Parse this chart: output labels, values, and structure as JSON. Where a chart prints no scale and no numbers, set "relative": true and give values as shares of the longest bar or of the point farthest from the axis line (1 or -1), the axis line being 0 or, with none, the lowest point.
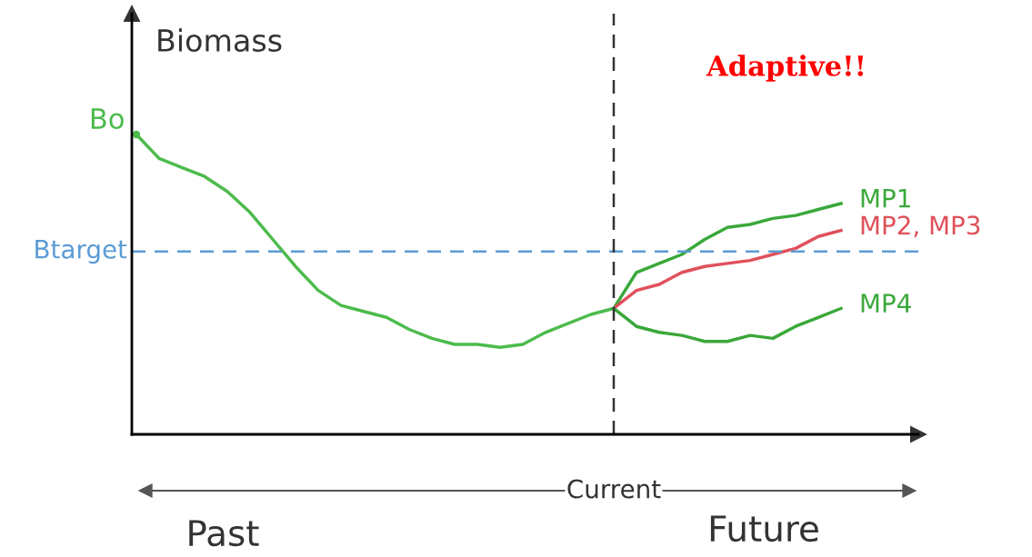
{
  "chart_data": {
    "type": "line",
    "relative": true,
    "ylabel": "Biomass",
    "legend": false,
    "grid": false,
    "marker": "none",
    "line_style": "solid",
    "categories": [
      null,
      null,
      null,
      null,
      null,
      null,
      null,
      null,
      null,
      null,
      null,
      null,
      null,
      null,
      null,
      null,
      null,
      null,
      null,
      null,
      null,
      null,
      null,
      null,
      null,
      null,
      null,
      null,
      null,
      null,
      null,
      null,
      null,
      null,
      null
    ],
    "series": [
      {
        "color": "#4cbb4c",
        "values": [
          1.0,
          0.92,
          0.89,
          0.86,
          0.81,
          0.74,
          0.65,
          0.56,
          0.48,
          0.43,
          0.41,
          0.39,
          0.35,
          0.32,
          0.3,
          0.3,
          0.29,
          0.3,
          0.34,
          0.37,
          0.4,
          0.42,
          null,
          null,
          null,
          null,
          null,
          null,
          null,
          null,
          null,
          null,
          null,
          null,
          null
        ]
      },
      {
        "name": "MP1",
        "color": "#3aa83a",
        "values": [
          null,
          null,
          null,
          null,
          null,
          null,
          null,
          null,
          null,
          null,
          null,
          null,
          null,
          null,
          null,
          null,
          null,
          null,
          null,
          null,
          null,
          0.42,
          0.54,
          0.57,
          0.6,
          0.65,
          0.69,
          0.7,
          0.72,
          0.73,
          0.75,
          0.77,
          null,
          null,
          null
        ]
      },
      {
        "name": "MP2, MP3",
        "color": "#e0505a",
        "values": [
          null,
          null,
          null,
          null,
          null,
          null,
          null,
          null,
          null,
          null,
          null,
          null,
          null,
          null,
          null,
          null,
          null,
          null,
          null,
          null,
          null,
          0.42,
          0.48,
          0.5,
          0.54,
          0.56,
          0.57,
          0.58,
          0.6,
          0.62,
          0.66,
          0.68,
          null,
          null,
          null
        ]
      },
      {
        "name": "MP4",
        "color": "#3aa83a",
        "values": [
          null,
          null,
          null,
          null,
          null,
          null,
          null,
          null,
          null,
          null,
          null,
          null,
          null,
          null,
          null,
          null,
          null,
          null,
          null,
          null,
          null,
          0.42,
          0.36,
          0.34,
          0.33,
          0.31,
          0.31,
          0.33,
          0.32,
          0.36,
          0.39,
          0.42,
          null,
          null,
          null
        ]
      }
    ],
    "ref_lines": [
      {
        "axis": "y",
        "value": 0.61,
        "label": "Btarget",
        "color": "#5b9bd5",
        "line_style": "dashed"
      }
    ],
    "annotations": [
      "Bo",
      "Current",
      "Past",
      "Future",
      "Adaptive!!"
    ]
  }
}
